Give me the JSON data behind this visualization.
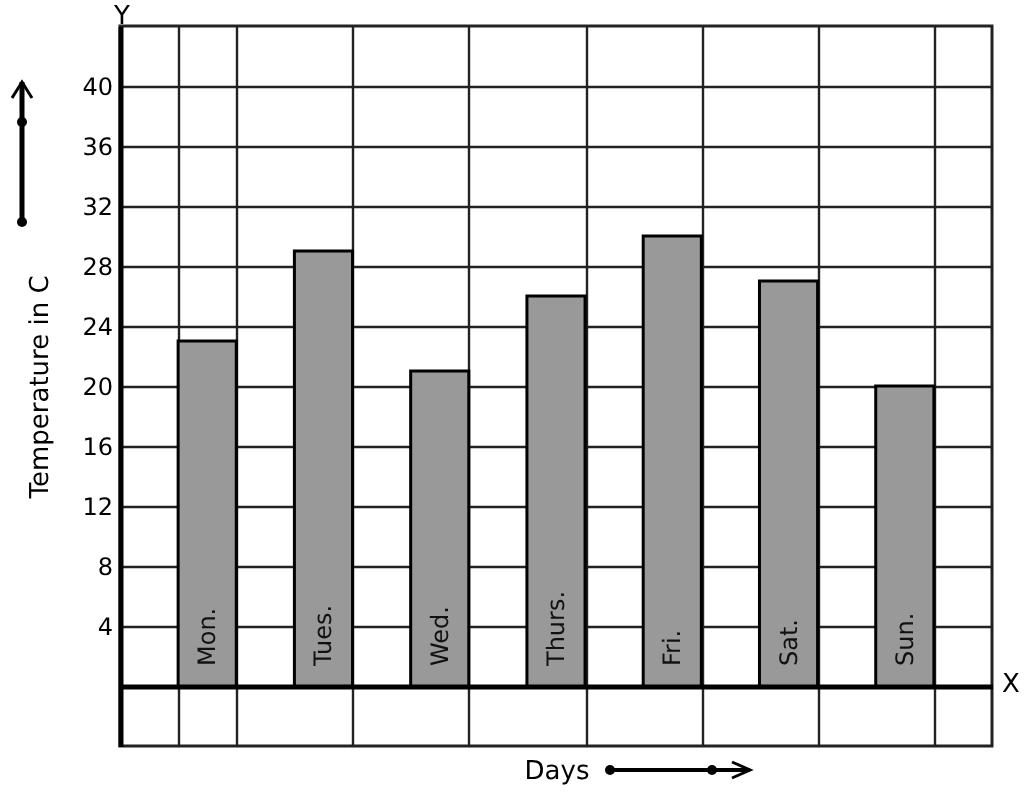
{
  "chart_data": {
    "type": "bar",
    "categories": [
      "Mon.",
      "Tues.",
      "Wed.",
      "Thurs.",
      "Fri.",
      "Sat.",
      "Sun."
    ],
    "values": [
      23,
      29,
      21,
      26,
      30,
      27,
      20
    ],
    "color": "#999999",
    "xlabel": "Days",
    "ylabel": "Temperature in C",
    "ylim": [
      -4,
      44
    ],
    "yticks": [
      {
        "value": 0,
        "label": null
      },
      4,
      8,
      12,
      16,
      20,
      24,
      28,
      32,
      36,
      40
    ],
    "grid": true,
    "annotations": [
      "X",
      "Y"
    ]
  }
}
